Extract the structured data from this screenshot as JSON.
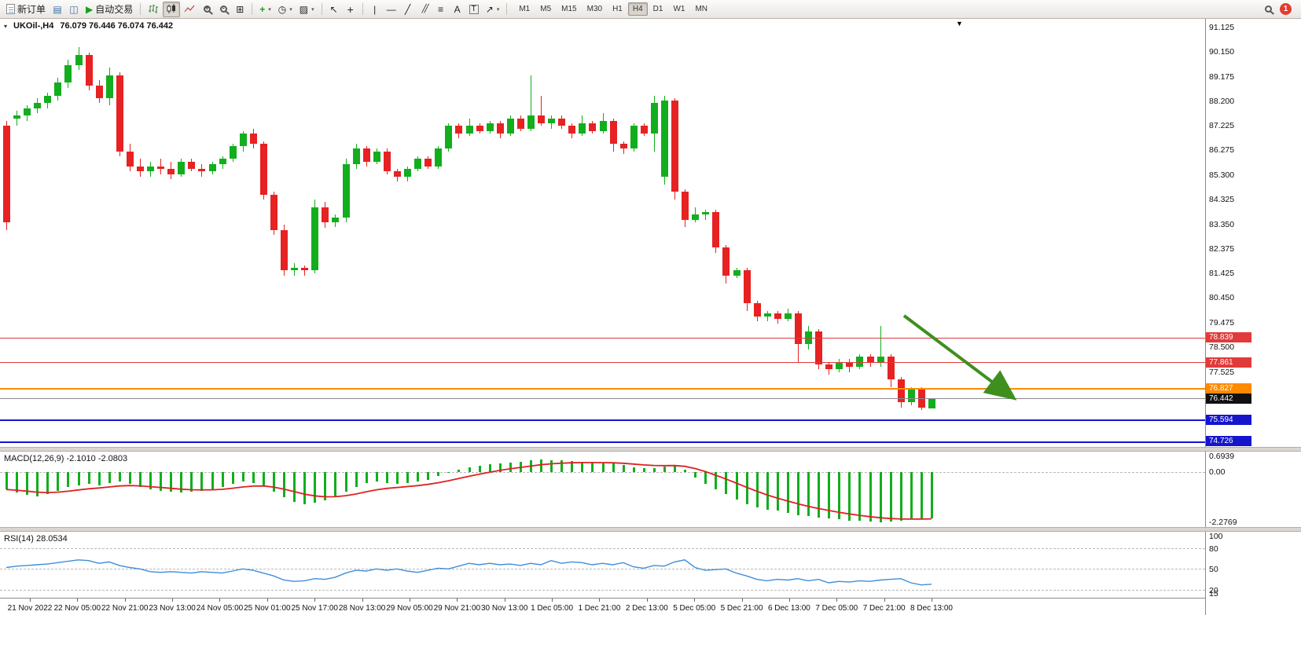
{
  "toolbar": {
    "new_order": {
      "label": "新订单"
    },
    "autotrading": {
      "label": "自动交易"
    },
    "timeframes": [
      "M1",
      "M5",
      "M15",
      "M30",
      "H1",
      "H4",
      "D1",
      "W1",
      "MN"
    ],
    "active_timeframe": "H4",
    "notifications": {
      "count": "1"
    },
    "icons": {
      "market_watch": "▤",
      "navigator": "◫",
      "autotrading_play": "▶",
      "tile_windows": "⊞",
      "add_indicator": "+",
      "periods": "◷",
      "template": "▨",
      "cursor": "↖",
      "crosshair": "+",
      "vertical_line": "|",
      "horizontal_line": "—",
      "trendline": "╱",
      "channel": "╱╱",
      "fibonacci": "≡",
      "text": "A",
      "text_label": "T",
      "arrows": "↗",
      "dropdown": "▾",
      "symbol_dropdown": "▾",
      "shift_marker": "▼"
    }
  },
  "chart_header": {
    "symbol": "UKOil-,H4",
    "ohlc": "76.079 76.446 76.074 76.442"
  },
  "price_axis": {
    "labels": [
      "91.125",
      "90.150",
      "89.175",
      "88.200",
      "87.225",
      "86.275",
      "85.300",
      "84.325",
      "83.350",
      "82.375",
      "81.425",
      "80.450",
      "79.475",
      "78.500",
      "77.525"
    ]
  },
  "macd_panel": {
    "label": "MACD(12,26,9) -2.1010 -2.0803",
    "value_macd": "-2.1010",
    "value_signal": "-2.0803",
    "axis_max_label": "0.6939",
    "axis_zero_label": "0.00",
    "axis_min_label": "-2.2769",
    "max": 0.6939,
    "min": -2.2769,
    "histogram_color": "#12ae1d",
    "signal_color": "#dd2222"
  },
  "rsi_panel": {
    "label": "RSI(14) 28.0534",
    "value": "28.0534",
    "line_color": "#3f8eda",
    "axis_labels": [
      {
        "value": 100,
        "text": "100"
      },
      {
        "value": 80,
        "text": "80"
      },
      {
        "value": 50,
        "text": "50"
      },
      {
        "value": 20,
        "text": "20"
      },
      {
        "value": 15,
        "text": "15"
      }
    ],
    "level_lines": [
      80,
      50,
      20
    ]
  },
  "time_axis": [
    "21 Nov 2022",
    "22 Nov 05:00",
    "22 Nov 21:00",
    "23 Nov 13:00",
    "24 Nov 05:00",
    "25 Nov 01:00",
    "25 Nov 17:00",
    "28 Nov 13:00",
    "29 Nov 05:00",
    "29 Nov 21:00",
    "30 Nov 13:00",
    "1 Dec 05:00",
    "1 Dec 21:00",
    "2 Dec 13:00",
    "5 Dec 05:00",
    "5 Dec 21:00",
    "6 Dec 13:00",
    "7 Dec 05:00",
    "7 Dec 21:00",
    "8 Dec 13:00"
  ],
  "chart_data": {
    "type": "candlestick",
    "symbol": "UKOil-",
    "timeframe": "H4",
    "last_bar": {
      "open": 76.079,
      "high": 76.446,
      "low": 76.074,
      "close": 76.442
    },
    "current_price": 76.442,
    "up_color": "#12ae1d",
    "down_color": "#e62222",
    "candles": [
      [
        87.2,
        87.4,
        83.1,
        83.4
      ],
      [
        87.5,
        87.8,
        87.2,
        87.6
      ],
      [
        87.6,
        88.0,
        87.4,
        87.9
      ],
      [
        87.9,
        88.3,
        87.7,
        88.1
      ],
      [
        88.1,
        88.5,
        87.9,
        88.4
      ],
      [
        88.4,
        89.1,
        88.2,
        88.9
      ],
      [
        88.9,
        89.8,
        88.7,
        89.6
      ],
      [
        89.6,
        90.3,
        89.4,
        90.0
      ],
      [
        90.0,
        90.1,
        88.6,
        88.8
      ],
      [
        88.8,
        89.0,
        88.1,
        88.3
      ],
      [
        88.3,
        89.5,
        88.0,
        89.2
      ],
      [
        89.2,
        89.3,
        86.0,
        86.2
      ],
      [
        86.2,
        86.5,
        85.4,
        85.6
      ],
      [
        85.6,
        85.9,
        85.2,
        85.4
      ],
      [
        85.4,
        85.8,
        85.2,
        85.6
      ],
      [
        85.6,
        85.9,
        85.3,
        85.5
      ],
      [
        85.5,
        85.8,
        85.1,
        85.3
      ],
      [
        85.3,
        85.9,
        85.2,
        85.8
      ],
      [
        85.8,
        85.9,
        85.4,
        85.5
      ],
      [
        85.5,
        85.7,
        85.2,
        85.4
      ],
      [
        85.4,
        85.8,
        85.3,
        85.7
      ],
      [
        85.7,
        86.0,
        85.5,
        85.9
      ],
      [
        85.9,
        86.5,
        85.8,
        86.4
      ],
      [
        86.4,
        87.0,
        86.2,
        86.9
      ],
      [
        86.9,
        87.1,
        86.3,
        86.5
      ],
      [
        86.5,
        86.6,
        84.3,
        84.5
      ],
      [
        84.5,
        84.6,
        82.9,
        83.1
      ],
      [
        83.1,
        83.3,
        81.3,
        81.5
      ],
      [
        81.5,
        81.8,
        81.3,
        81.6
      ],
      [
        81.6,
        81.7,
        81.3,
        81.5
      ],
      [
        81.5,
        84.3,
        81.4,
        84.0
      ],
      [
        84.0,
        84.2,
        83.2,
        83.4
      ],
      [
        83.4,
        83.7,
        83.2,
        83.6
      ],
      [
        83.6,
        85.9,
        83.4,
        85.7
      ],
      [
        85.7,
        86.5,
        85.5,
        86.3
      ],
      [
        86.3,
        86.4,
        85.6,
        85.8
      ],
      [
        85.8,
        86.3,
        85.7,
        86.2
      ],
      [
        86.2,
        86.3,
        85.3,
        85.4
      ],
      [
        85.4,
        85.5,
        85.0,
        85.2
      ],
      [
        85.2,
        85.6,
        85.0,
        85.5
      ],
      [
        85.5,
        86.0,
        85.4,
        85.9
      ],
      [
        85.9,
        86.0,
        85.5,
        85.6
      ],
      [
        85.6,
        86.4,
        85.5,
        86.3
      ],
      [
        86.3,
        87.3,
        86.2,
        87.2
      ],
      [
        87.2,
        87.3,
        86.7,
        86.9
      ],
      [
        86.9,
        87.5,
        86.8,
        87.2
      ],
      [
        87.2,
        87.3,
        86.9,
        87.0
      ],
      [
        87.0,
        87.4,
        86.9,
        87.3
      ],
      [
        87.3,
        87.4,
        86.7,
        86.9
      ],
      [
        86.9,
        87.6,
        86.8,
        87.5
      ],
      [
        87.5,
        87.6,
        87.0,
        87.1
      ],
      [
        87.1,
        89.2,
        87.0,
        87.6
      ],
      [
        87.6,
        88.4,
        87.2,
        87.3
      ],
      [
        87.3,
        87.6,
        87.1,
        87.5
      ],
      [
        87.5,
        87.6,
        87.1,
        87.2
      ],
      [
        87.2,
        87.3,
        86.7,
        86.9
      ],
      [
        86.9,
        87.6,
        86.8,
        87.3
      ],
      [
        87.3,
        87.4,
        86.9,
        87.0
      ],
      [
        87.0,
        87.7,
        86.9,
        87.4
      ],
      [
        87.4,
        87.5,
        86.2,
        86.5
      ],
      [
        86.5,
        86.6,
        86.1,
        86.3
      ],
      [
        86.3,
        87.3,
        86.2,
        87.2
      ],
      [
        87.2,
        87.3,
        86.8,
        86.9
      ],
      [
        86.9,
        88.4,
        86.2,
        88.1
      ],
      [
        85.2,
        88.4,
        84.9,
        88.2
      ],
      [
        88.2,
        88.3,
        84.3,
        84.6
      ],
      [
        84.6,
        84.7,
        83.2,
        83.5
      ],
      [
        83.5,
        84.0,
        83.4,
        83.7
      ],
      [
        83.7,
        83.9,
        83.5,
        83.8
      ],
      [
        83.8,
        83.9,
        82.2,
        82.4
      ],
      [
        82.4,
        82.5,
        81.0,
        81.3
      ],
      [
        81.3,
        81.6,
        81.2,
        81.5
      ],
      [
        81.5,
        81.6,
        79.9,
        80.2
      ],
      [
        80.2,
        80.3,
        79.5,
        79.7
      ],
      [
        79.7,
        79.9,
        79.5,
        79.8
      ],
      [
        79.8,
        79.9,
        79.4,
        79.6
      ],
      [
        79.6,
        80.0,
        79.5,
        79.8
      ],
      [
        79.8,
        79.9,
        77.9,
        78.6
      ],
      [
        78.6,
        79.3,
        78.4,
        79.1
      ],
      [
        79.1,
        79.2,
        77.6,
        77.8
      ],
      [
        77.8,
        77.9,
        77.4,
        77.6
      ],
      [
        77.6,
        78.0,
        77.5,
        77.9
      ],
      [
        77.9,
        78.0,
        77.5,
        77.7
      ],
      [
        77.7,
        78.2,
        77.6,
        78.1
      ],
      [
        78.1,
        78.2,
        77.7,
        77.9
      ],
      [
        77.9,
        79.3,
        77.7,
        78.1
      ],
      [
        78.1,
        78.2,
        76.9,
        77.2
      ],
      [
        77.2,
        77.3,
        76.1,
        76.3
      ],
      [
        76.3,
        76.9,
        76.2,
        76.8
      ],
      [
        76.8,
        76.9,
        76.0,
        76.1
      ],
      [
        76.079,
        76.446,
        76.074,
        76.442
      ]
    ],
    "macd_histogram": [
      -0.8,
      -0.95,
      -1.05,
      -1.1,
      -1.0,
      -0.85,
      -0.7,
      -0.6,
      -0.55,
      -0.6,
      -0.5,
      -0.45,
      -0.55,
      -0.7,
      -0.8,
      -0.85,
      -0.9,
      -0.95,
      -0.9,
      -0.85,
      -0.8,
      -0.7,
      -0.55,
      -0.45,
      -0.5,
      -0.6,
      -0.9,
      -1.15,
      -1.35,
      -1.45,
      -1.4,
      -1.3,
      -1.1,
      -0.9,
      -0.7,
      -0.5,
      -0.45,
      -0.5,
      -0.55,
      -0.5,
      -0.45,
      -0.35,
      -0.2,
      -0.05,
      0.1,
      0.2,
      0.28,
      0.33,
      0.38,
      0.42,
      0.45,
      0.5,
      0.55,
      0.52,
      0.5,
      0.48,
      0.45,
      0.42,
      0.4,
      0.38,
      0.3,
      0.2,
      0.15,
      0.18,
      0.25,
      0.3,
      0.1,
      -0.25,
      -0.55,
      -0.8,
      -1.0,
      -1.25,
      -1.45,
      -1.6,
      -1.7,
      -1.75,
      -1.85,
      -1.95,
      -2.0,
      -2.05,
      -2.1,
      -2.15,
      -2.2,
      -2.22,
      -2.25,
      -2.27,
      -2.25,
      -2.2,
      -2.15,
      -2.12,
      -2.1
    ],
    "rsi": [
      52,
      54,
      55,
      56,
      57,
      59,
      61,
      63,
      62,
      58,
      60,
      55,
      52,
      50,
      46,
      45,
      46,
      45,
      44,
      46,
      45,
      44,
      47,
      50,
      48,
      44,
      40,
      34,
      32,
      33,
      36,
      35,
      38,
      44,
      48,
      47,
      50,
      48,
      50,
      47,
      45,
      48,
      51,
      50,
      54,
      58,
      56,
      58,
      56,
      57,
      55,
      58,
      56,
      62,
      58,
      60,
      59,
      56,
      58,
      56,
      59,
      53,
      51,
      55,
      54,
      60,
      63,
      52,
      48,
      49,
      50,
      44,
      40,
      35,
      33,
      35,
      34,
      36,
      33,
      35,
      30,
      32,
      31,
      33,
      32,
      34,
      35,
      36,
      30,
      27,
      28
    ],
    "levels": [
      {
        "price": 78.839,
        "label": "78.839",
        "color": "#e23a3a",
        "tag_bg": "#e23a3a",
        "width": 1
      },
      {
        "price": 77.861,
        "label": "77.861",
        "color": "#e23a3a",
        "tag_bg": "#e23a3a",
        "width": 1
      },
      {
        "price": 76.827,
        "label": "76.827",
        "color": "#ff8a00",
        "tag_bg": "#ff8a00",
        "width": 2
      },
      {
        "price": 76.442,
        "label": "76.442",
        "color": "#8a8a8a",
        "tag_bg": "#111111",
        "width": 1
      },
      {
        "price": 75.594,
        "label": "75.594",
        "color": "#1515cd",
        "tag_bg": "#1515cd",
        "width": 2
      },
      {
        "price": 74.726,
        "label": "74.726",
        "color": "#1515cd",
        "tag_bg": "#1515cd",
        "width": 2
      }
    ],
    "annotation_arrow": {
      "from_price": 79.72,
      "to_price": 76.53,
      "color": "#3f8f1f"
    }
  }
}
